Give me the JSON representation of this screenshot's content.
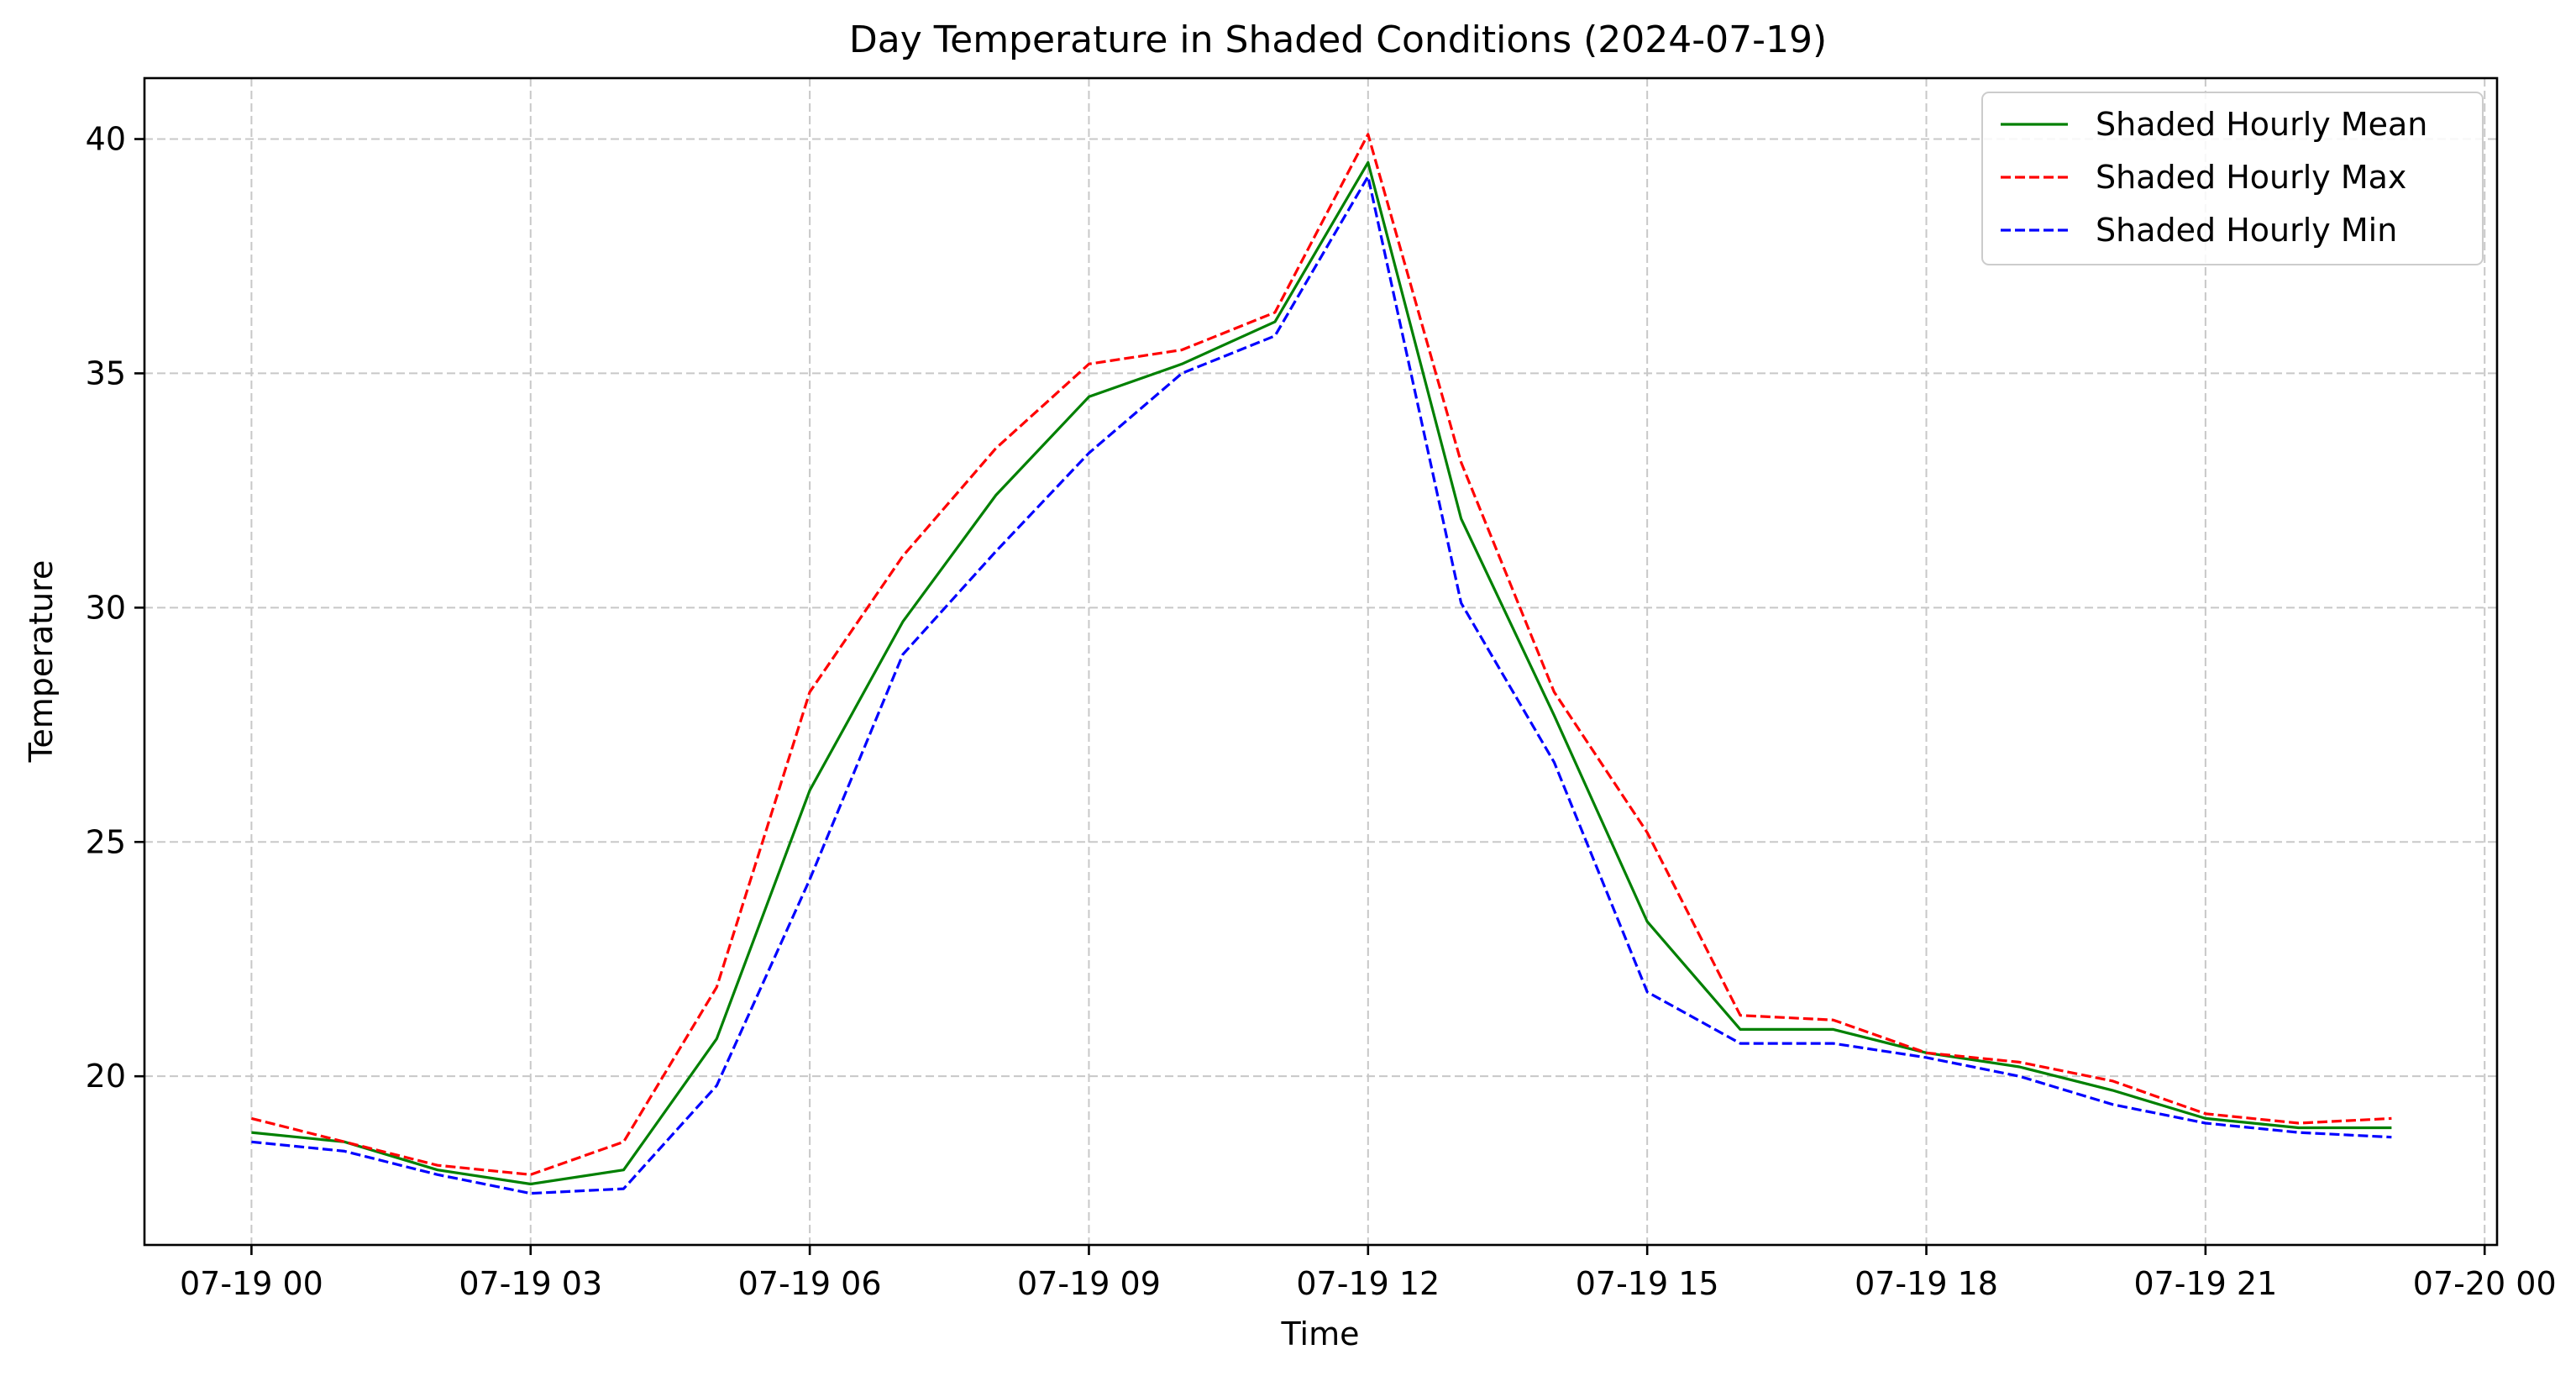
{
  "chart_data": {
    "type": "line",
    "title": "Day Temperature in Shaded Conditions (2024-07-19)",
    "xlabel": "Time",
    "ylabel": "Temperature",
    "x": [
      "2024-07-19 00:00",
      "2024-07-19 01:00",
      "2024-07-19 02:00",
      "2024-07-19 03:00",
      "2024-07-19 04:00",
      "2024-07-19 05:00",
      "2024-07-19 06:00",
      "2024-07-19 07:00",
      "2024-07-19 08:00",
      "2024-07-19 09:00",
      "2024-07-19 10:00",
      "2024-07-19 11:00",
      "2024-07-19 12:00",
      "2024-07-19 13:00",
      "2024-07-19 14:00",
      "2024-07-19 15:00",
      "2024-07-19 16:00",
      "2024-07-19 17:00",
      "2024-07-19 18:00",
      "2024-07-19 19:00",
      "2024-07-19 20:00",
      "2024-07-19 21:00",
      "2024-07-19 22:00",
      "2024-07-19 23:00"
    ],
    "xlim": [
      "2024-07-18 22:51",
      "2024-07-20 00:08"
    ],
    "ylim": [
      16.4,
      41.3
    ],
    "x_ticks": [
      "07-19 00",
      "07-19 03",
      "07-19 06",
      "07-19 09",
      "07-19 12",
      "07-19 15",
      "07-19 18",
      "07-19 21",
      "07-20 00"
    ],
    "y_ticks": [
      "20",
      "25",
      "30",
      "35",
      "40"
    ],
    "grid": true,
    "legend_position": "top-right",
    "series": [
      {
        "name": "Shaded Hourly Mean",
        "color": "#008000",
        "dash": "solid",
        "values": [
          18.8,
          18.6,
          18.0,
          17.7,
          18.0,
          20.8,
          26.1,
          29.7,
          32.4,
          34.5,
          35.2,
          36.1,
          39.5,
          31.9,
          27.7,
          23.3,
          21.0,
          21.0,
          20.5,
          20.2,
          19.7,
          19.1,
          18.9,
          18.9
        ]
      },
      {
        "name": "Shaded Hourly Max",
        "color": "#ff0000",
        "dash": "dashed",
        "values": [
          19.1,
          18.6,
          18.1,
          17.9,
          18.6,
          21.9,
          28.2,
          31.1,
          33.4,
          35.2,
          35.5,
          36.3,
          40.1,
          33.1,
          28.2,
          25.2,
          21.3,
          21.2,
          20.5,
          20.3,
          19.9,
          19.2,
          19.0,
          19.1
        ]
      },
      {
        "name": "Shaded Hourly Min",
        "color": "#0000ff",
        "dash": "dashed",
        "values": [
          18.6,
          18.4,
          17.9,
          17.5,
          17.6,
          19.8,
          24.2,
          29.0,
          31.2,
          33.3,
          35.0,
          35.8,
          39.2,
          30.1,
          26.7,
          21.8,
          20.7,
          20.7,
          20.4,
          20.0,
          19.4,
          19.0,
          18.8,
          18.7
        ]
      }
    ]
  }
}
